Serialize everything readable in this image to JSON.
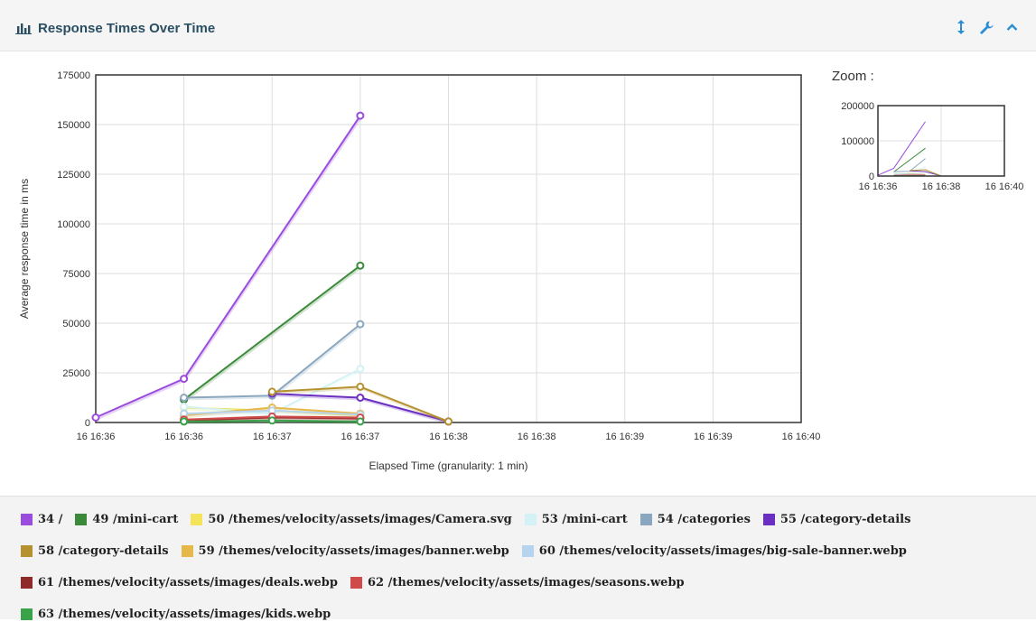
{
  "panel": {
    "title": "Response Times Over Time",
    "icons": {
      "title": "bar-chart-icon",
      "toggle": "vertical-arrows-icon",
      "settings": "wrench-icon",
      "collapse": "chevron-up-icon"
    }
  },
  "zoom": {
    "label": "Zoom :"
  },
  "chart_data": {
    "type": "line",
    "xlabel": "Elapsed Time (granularity: 1 min)",
    "ylabel": "Average response time in ms",
    "ylim": [
      0,
      175000
    ],
    "yticks": [
      "0",
      "25000",
      "50000",
      "75000",
      "100000",
      "125000",
      "150000",
      "175000"
    ],
    "xticks": [
      "16 16:36",
      "16 16:36",
      "16 16:37",
      "16 16:37",
      "16 16:38",
      "16 16:38",
      "16 16:39",
      "16 16:39",
      "16 16:40"
    ],
    "grid": true,
    "legend": "bottom",
    "series": [
      {
        "name": "34 /",
        "color": "#9a4ddd",
        "points": [
          [
            0,
            2500
          ],
          [
            1,
            22000
          ],
          [
            3,
            154500
          ]
        ]
      },
      {
        "name": "49 /mini-cart",
        "color": "#3a8a3a",
        "points": [
          [
            1,
            11500
          ],
          [
            3,
            79000
          ]
        ]
      },
      {
        "name": "50 /themes/velocity/assets/images/Camera.svg",
        "color": "#f3e45a",
        "points": [
          [
            1,
            7500
          ],
          [
            2,
            6000
          ],
          [
            3,
            3500
          ]
        ]
      },
      {
        "name": "53 /mini-cart",
        "color": "#d4f2f6",
        "points": [
          [
            1,
            8000
          ],
          [
            2,
            4500
          ],
          [
            3,
            27000
          ]
        ]
      },
      {
        "name": "54 /categories",
        "color": "#8aa7bf",
        "points": [
          [
            1,
            12500
          ],
          [
            2,
            13500
          ],
          [
            3,
            49500
          ]
        ]
      },
      {
        "name": "55 /category-details",
        "color": "#6b2fc2",
        "points": [
          [
            2,
            14500
          ],
          [
            3,
            12500
          ],
          [
            4,
            500
          ]
        ]
      },
      {
        "name": "58 /category-details",
        "color": "#b5922f",
        "points": [
          [
            2,
            15500
          ],
          [
            3,
            18000
          ],
          [
            4,
            500
          ]
        ]
      },
      {
        "name": "59 /themes/velocity/assets/images/banner.webp",
        "color": "#e6b84a",
        "points": [
          [
            1,
            3500
          ],
          [
            2,
            7500
          ],
          [
            3,
            4500
          ]
        ]
      },
      {
        "name": "60 /themes/velocity/assets/images/big-sale-banner.webp",
        "color": "#b7d4ef",
        "points": [
          [
            1,
            4500
          ],
          [
            2,
            6000
          ],
          [
            3,
            4000
          ]
        ]
      },
      {
        "name": "61 /themes/velocity/assets/images/deals.webp",
        "color": "#8e2a2a",
        "points": [
          [
            1,
            1000
          ],
          [
            2,
            2500
          ],
          [
            3,
            2000
          ]
        ]
      },
      {
        "name": "62 /themes/velocity/assets/images/seasons.webp",
        "color": "#cf4b4b",
        "points": [
          [
            1,
            1500
          ],
          [
            2,
            3000
          ],
          [
            3,
            2500
          ]
        ]
      },
      {
        "name": "63 /themes/velocity/assets/images/kids.webp",
        "color": "#3aa34a",
        "points": [
          [
            1,
            500
          ],
          [
            2,
            1000
          ],
          [
            3,
            500
          ]
        ]
      }
    ],
    "zoom": {
      "ylim": [
        0,
        200000
      ],
      "yticks": [
        "0",
        "100000",
        "200000"
      ],
      "xticks": [
        "16 16:36",
        "16 16:38",
        "16 16:40"
      ]
    }
  }
}
